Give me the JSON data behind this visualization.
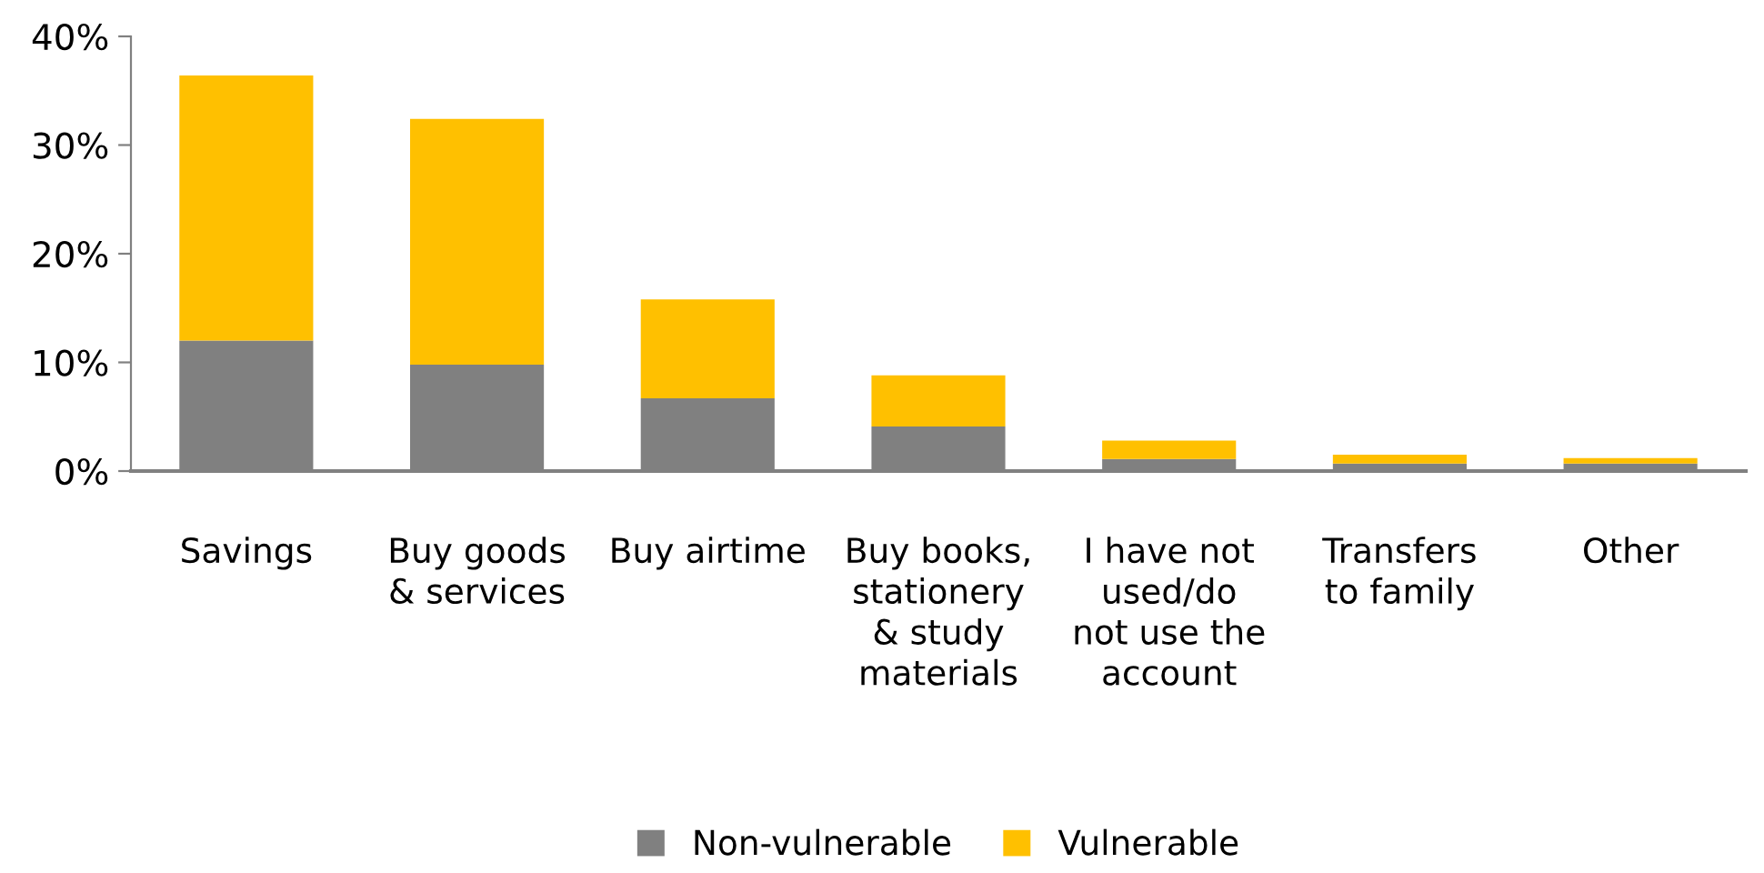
{
  "chart_data": {
    "type": "bar",
    "stacked": true,
    "categories": [
      "Savings",
      "Buy goods\n& services",
      "Buy airtime",
      "Buy books,\nstationery\n& study\nmaterials",
      "I have not\nused/do\nnot use the\naccount",
      "Transfers\nto family",
      "Other"
    ],
    "series": [
      {
        "name": "Non-vulnerable",
        "color": "#808080",
        "values": [
          12.0,
          9.8,
          6.7,
          4.1,
          1.1,
          0.7,
          0.7
        ]
      },
      {
        "name": "Vulnerable",
        "color": "#ffc000",
        "values": [
          24.4,
          22.6,
          9.1,
          4.7,
          1.7,
          0.8,
          0.5
        ]
      }
    ],
    "ylim": [
      0,
      40
    ],
    "yticks": [
      {
        "value": 0,
        "label": "0%"
      },
      {
        "value": 10,
        "label": "10%"
      },
      {
        "value": 20,
        "label": "20%"
      },
      {
        "value": 30,
        "label": "30%"
      },
      {
        "value": 40,
        "label": "40%"
      }
    ],
    "grid": false,
    "legend": "bottom"
  }
}
